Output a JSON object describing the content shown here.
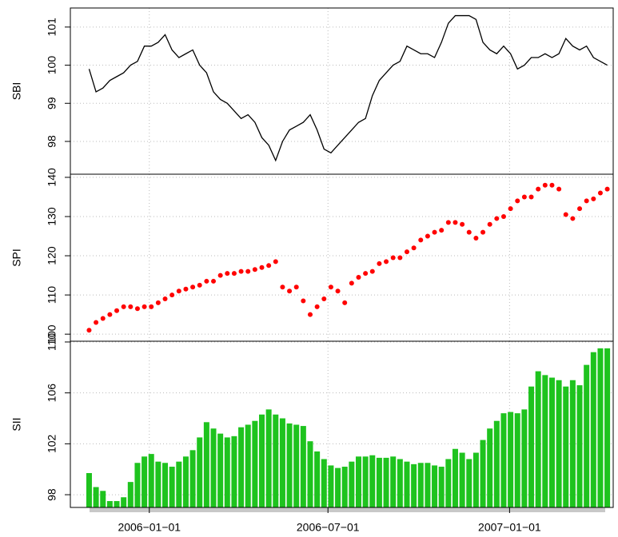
{
  "chart_data": [
    {
      "type": "line",
      "y_label": "SBI",
      "color": "#000000",
      "x": [
        "2005-11-01",
        "2005-11-08",
        "2005-11-15",
        "2005-11-22",
        "2005-11-29",
        "2005-12-06",
        "2005-12-13",
        "2005-12-20",
        "2005-12-27",
        "2006-01-03",
        "2006-01-10",
        "2006-01-17",
        "2006-01-24",
        "2006-01-31",
        "2006-02-07",
        "2006-02-14",
        "2006-02-21",
        "2006-02-28",
        "2006-03-07",
        "2006-03-14",
        "2006-03-21",
        "2006-03-28",
        "2006-04-04",
        "2006-04-11",
        "2006-04-18",
        "2006-04-25",
        "2006-05-02",
        "2006-05-09",
        "2006-05-16",
        "2006-05-23",
        "2006-05-30",
        "2006-06-06",
        "2006-06-13",
        "2006-06-20",
        "2006-06-27",
        "2006-07-04",
        "2006-07-11",
        "2006-07-18",
        "2006-07-25",
        "2006-08-01",
        "2006-08-08",
        "2006-08-15",
        "2006-08-22",
        "2006-08-29",
        "2006-09-05",
        "2006-09-12",
        "2006-09-19",
        "2006-09-26",
        "2006-10-03",
        "2006-10-10",
        "2006-10-17",
        "2006-10-24",
        "2006-10-31",
        "2006-11-07",
        "2006-11-14",
        "2006-11-21",
        "2006-11-28",
        "2006-12-05",
        "2006-12-12",
        "2006-12-19",
        "2006-12-26",
        "2007-01-02",
        "2007-01-09",
        "2007-01-16",
        "2007-01-23",
        "2007-01-30",
        "2007-02-06",
        "2007-02-13",
        "2007-02-20",
        "2007-02-27",
        "2007-03-06",
        "2007-03-13",
        "2007-03-20",
        "2007-03-27",
        "2007-04-03",
        "2007-04-10"
      ],
      "values": [
        99.9,
        99.3,
        99.4,
        99.6,
        99.7,
        99.8,
        100.0,
        100.1,
        100.5,
        100.5,
        100.6,
        100.8,
        100.4,
        100.2,
        100.3,
        100.4,
        100.0,
        99.8,
        99.3,
        99.1,
        99.0,
        98.8,
        98.6,
        98.7,
        98.5,
        98.1,
        97.9,
        97.5,
        98.0,
        98.3,
        98.4,
        98.5,
        98.7,
        98.3,
        97.8,
        97.7,
        97.9,
        98.1,
        98.3,
        98.5,
        98.6,
        99.2,
        99.6,
        99.8,
        100.0,
        100.1,
        100.5,
        100.4,
        100.3,
        100.3,
        100.2,
        100.6,
        101.1,
        101.3,
        101.3,
        101.3,
        101.2,
        100.6,
        100.4,
        100.3,
        100.5,
        100.3,
        99.9,
        100.0,
        100.2,
        100.2,
        100.3,
        100.2,
        100.3,
        100.7,
        100.5,
        100.4,
        100.5,
        100.2,
        100.1,
        100.0
      ],
      "xlim": [
        "2005-10-13",
        "2007-04-16"
      ],
      "ylim": [
        97.14,
        101.5
      ],
      "yticks": [
        98,
        99,
        100,
        101
      ],
      "grid": true
    },
    {
      "type": "scatter",
      "y_label": "SPI",
      "color": "#ff0000",
      "x": [
        "2005-11-01",
        "2005-11-08",
        "2005-11-15",
        "2005-11-22",
        "2005-11-29",
        "2005-12-06",
        "2005-12-13",
        "2005-12-20",
        "2005-12-27",
        "2006-01-03",
        "2006-01-10",
        "2006-01-17",
        "2006-01-24",
        "2006-01-31",
        "2006-02-07",
        "2006-02-14",
        "2006-02-21",
        "2006-02-28",
        "2006-03-07",
        "2006-03-14",
        "2006-03-21",
        "2006-03-28",
        "2006-04-04",
        "2006-04-11",
        "2006-04-18",
        "2006-04-25",
        "2006-05-02",
        "2006-05-09",
        "2006-05-16",
        "2006-05-23",
        "2006-05-30",
        "2006-06-06",
        "2006-06-13",
        "2006-06-20",
        "2006-06-27",
        "2006-07-04",
        "2006-07-11",
        "2006-07-18",
        "2006-07-25",
        "2006-08-01",
        "2006-08-08",
        "2006-08-15",
        "2006-08-22",
        "2006-08-29",
        "2006-09-05",
        "2006-09-12",
        "2006-09-19",
        "2006-09-26",
        "2006-10-03",
        "2006-10-10",
        "2006-10-17",
        "2006-10-24",
        "2006-10-31",
        "2006-11-07",
        "2006-11-14",
        "2006-11-21",
        "2006-11-28",
        "2006-12-05",
        "2006-12-12",
        "2006-12-19",
        "2006-12-26",
        "2007-01-02",
        "2007-01-09",
        "2007-01-16",
        "2007-01-23",
        "2007-01-30",
        "2007-02-06",
        "2007-02-13",
        "2007-02-20",
        "2007-02-27",
        "2007-03-06",
        "2007-03-13",
        "2007-03-20",
        "2007-03-27",
        "2007-04-03",
        "2007-04-10"
      ],
      "values": [
        101,
        103,
        104,
        105,
        106,
        107,
        107,
        106.5,
        107,
        107,
        108,
        109,
        110,
        111,
        111.5,
        112,
        112.5,
        113.5,
        113.5,
        115,
        115.5,
        115.5,
        116,
        116,
        116.5,
        117,
        117.5,
        118.5,
        112,
        111,
        112,
        108.5,
        105,
        107,
        109,
        112,
        111,
        108,
        113,
        114.5,
        115.5,
        116,
        118,
        118.5,
        119.5,
        119.5,
        121,
        122,
        124,
        125,
        126,
        126.5,
        128.5,
        128.5,
        128,
        126,
        124.5,
        126,
        128,
        129.5,
        130,
        132,
        134,
        135,
        135,
        137,
        138,
        138,
        137,
        130.5,
        129.5,
        132,
        134,
        134.5,
        136,
        137
      ],
      "xlim": [
        "2005-10-13",
        "2007-04-16"
      ],
      "ylim": [
        98.2,
        140.8
      ],
      "yticks": [
        100,
        110,
        120,
        130,
        140
      ],
      "grid": true
    },
    {
      "type": "bar",
      "y_label": "SII",
      "color": "#1ec31e",
      "x": [
        "2005-11-01",
        "2005-11-08",
        "2005-11-15",
        "2005-11-22",
        "2005-11-29",
        "2005-12-06",
        "2005-12-13",
        "2005-12-20",
        "2005-12-27",
        "2006-01-03",
        "2006-01-10",
        "2006-01-17",
        "2006-01-24",
        "2006-01-31",
        "2006-02-07",
        "2006-02-14",
        "2006-02-21",
        "2006-02-28",
        "2006-03-07",
        "2006-03-14",
        "2006-03-21",
        "2006-03-28",
        "2006-04-04",
        "2006-04-11",
        "2006-04-18",
        "2006-04-25",
        "2006-05-02",
        "2006-05-09",
        "2006-05-16",
        "2006-05-23",
        "2006-05-30",
        "2006-06-06",
        "2006-06-13",
        "2006-06-20",
        "2006-06-27",
        "2006-07-04",
        "2006-07-11",
        "2006-07-18",
        "2006-07-25",
        "2006-08-01",
        "2006-08-08",
        "2006-08-15",
        "2006-08-22",
        "2006-08-29",
        "2006-09-05",
        "2006-09-12",
        "2006-09-19",
        "2006-09-26",
        "2006-10-03",
        "2006-10-10",
        "2006-10-17",
        "2006-10-24",
        "2006-10-31",
        "2006-11-07",
        "2006-11-14",
        "2006-11-21",
        "2006-11-28",
        "2006-12-05",
        "2006-12-12",
        "2006-12-19",
        "2006-12-26",
        "2007-01-02",
        "2007-01-09",
        "2007-01-16",
        "2007-01-23",
        "2007-01-30",
        "2007-02-06",
        "2007-02-13",
        "2007-02-20",
        "2007-02-27",
        "2007-03-06",
        "2007-03-13",
        "2007-03-20",
        "2007-03-27",
        "2007-04-03",
        "2007-04-10"
      ],
      "values": [
        99.7,
        98.6,
        98.3,
        97.5,
        97.5,
        97.8,
        99,
        100.5,
        101,
        101.2,
        100.6,
        100.5,
        100.2,
        100.6,
        101,
        101.5,
        102.5,
        103.7,
        103.2,
        102.8,
        102.5,
        102.6,
        103.3,
        103.5,
        103.8,
        104.3,
        104.7,
        104.3,
        104,
        103.6,
        103.5,
        103.4,
        102.2,
        101.4,
        100.8,
        100.3,
        100.1,
        100.2,
        100.6,
        101,
        101,
        101.1,
        100.9,
        100.9,
        101,
        100.8,
        100.6,
        100.4,
        100.5,
        100.5,
        100.3,
        100.2,
        100.8,
        101.6,
        101.3,
        100.8,
        101.3,
        102.3,
        103.2,
        103.8,
        104.4,
        104.5,
        104.4,
        104.7,
        106.5,
        107.7,
        107.4,
        107.2,
        107,
        106.5,
        107,
        106.6,
        108.2,
        109.2,
        109.5,
        109.5
      ],
      "xlim": [
        "2005-10-13",
        "2007-04-16"
      ],
      "ylim": [
        97,
        110.06
      ],
      "yticks": [
        98,
        102,
        106,
        110
      ],
      "xticks": [
        {
          "value": "2006-01-01",
          "label": "2006−01−01"
        },
        {
          "value": "2006-07-01",
          "label": "2006−07−01"
        },
        {
          "value": "2007-01-01",
          "label": "2007−01−01"
        }
      ],
      "grid": true
    }
  ]
}
